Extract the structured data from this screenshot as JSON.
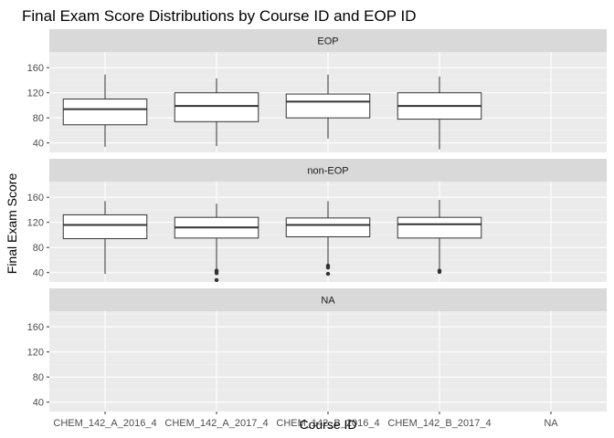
{
  "chart_data": {
    "type": "boxplot",
    "title": "Final Exam Score Distributions by Course ID and EOP ID",
    "xlabel": "Course ID",
    "ylabel": "Final Exam Score",
    "categories": [
      "CHEM_142_A_2016_4",
      "CHEM_142_A_2017_4",
      "CHEM_142_B_2016_4",
      "CHEM_142_B_2017_4",
      "NA"
    ],
    "yticks": [
      40,
      80,
      120,
      160
    ],
    "ylim": [
      25,
      185
    ],
    "facet_variable": "EOP ID",
    "facets": [
      {
        "label": "EOP",
        "boxes": [
          {
            "category": "CHEM_142_A_2016_4",
            "lower_whisker": 34,
            "q1": 69,
            "median": 94,
            "q3": 110,
            "upper_whisker": 149,
            "outliers": []
          },
          {
            "category": "CHEM_142_A_2017_4",
            "lower_whisker": 35,
            "q1": 74,
            "median": 99,
            "q3": 120,
            "upper_whisker": 143,
            "outliers": []
          },
          {
            "category": "CHEM_142_B_2016_4",
            "lower_whisker": 47,
            "q1": 80,
            "median": 106,
            "q3": 118,
            "upper_whisker": 149,
            "outliers": []
          },
          {
            "category": "CHEM_142_B_2017_4",
            "lower_whisker": 30,
            "q1": 78,
            "median": 99,
            "q3": 120,
            "upper_whisker": 146,
            "outliers": []
          }
        ]
      },
      {
        "label": "non-EOP",
        "boxes": [
          {
            "category": "CHEM_142_A_2016_4",
            "lower_whisker": 38,
            "q1": 94,
            "median": 116,
            "q3": 132,
            "upper_whisker": 154,
            "outliers": []
          },
          {
            "category": "CHEM_142_A_2017_4",
            "lower_whisker": 45,
            "q1": 95,
            "median": 112,
            "q3": 128,
            "upper_whisker": 150,
            "outliers": [
              43,
              41,
              39,
              28
            ]
          },
          {
            "category": "CHEM_142_B_2016_4",
            "lower_whisker": 54,
            "q1": 97,
            "median": 116,
            "q3": 127,
            "upper_whisker": 154,
            "outliers": [
              51,
              48,
              38
            ]
          },
          {
            "category": "CHEM_142_B_2017_4",
            "lower_whisker": 45,
            "q1": 95,
            "median": 117,
            "q3": 128,
            "upper_whisker": 156,
            "outliers": [
              43,
              41
            ]
          }
        ]
      },
      {
        "label": "NA",
        "boxes": []
      }
    ],
    "grid": true,
    "legend": "none",
    "colors": {
      "panel_background": "#ebebeb",
      "strip_background": "#d9d9d9",
      "grid_major": "#ffffff",
      "grid_minor": "#f2f2f2",
      "box_fill": "#ffffff",
      "box_line": "#333333",
      "outlier": "#333333",
      "tick_text": "#4d4d4d",
      "strip_text": "#1a1a1a"
    }
  }
}
